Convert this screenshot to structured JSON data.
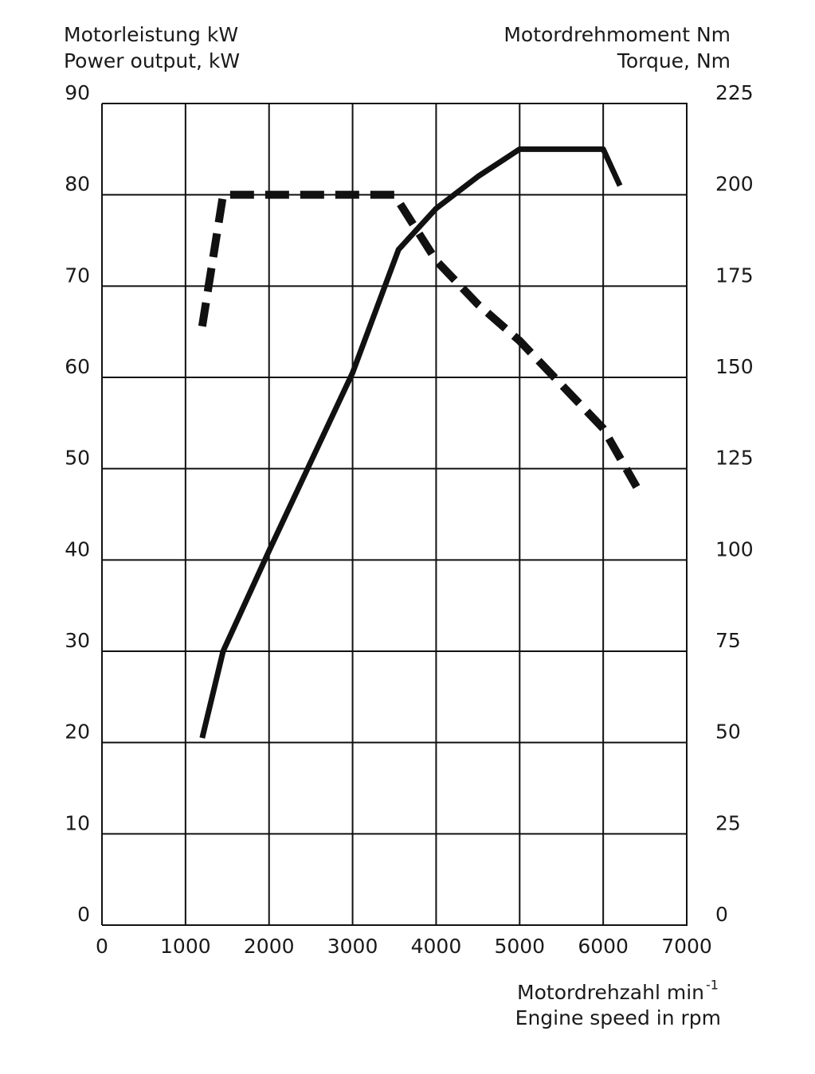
{
  "chart_data": {
    "type": "line",
    "y_label": [
      "Motorleistung kW",
      "Power output, kW"
    ],
    "y2_label": [
      "Motordrehmoment Nm",
      "Torque, Nm"
    ],
    "x_label": [
      "Motordrehzahl min",
      "Engine speed in rpm"
    ],
    "x_label_superscript": "-1",
    "xlim": [
      0,
      7000
    ],
    "xticks": [
      0,
      1000,
      2000,
      3000,
      4000,
      5000,
      6000,
      7000
    ],
    "ylim": [
      0,
      90
    ],
    "yticks": [
      0,
      10,
      20,
      30,
      40,
      50,
      60,
      70,
      80,
      90
    ],
    "y2lim": [
      0,
      225
    ],
    "y2ticks": [
      0,
      25,
      50,
      75,
      100,
      125,
      150,
      175,
      200,
      225
    ],
    "grid": true,
    "series": [
      {
        "color": "#111111",
        "line_style": "solid",
        "axis": "y",
        "x": [
          1200,
          1450,
          2000,
          3000,
          3550,
          4000,
          4500,
          5000,
          6000,
          6200
        ],
        "values": [
          20.5,
          30,
          41,
          60.5,
          74,
          78.5,
          82,
          85,
          85,
          81
        ]
      },
      {
        "color": "#111111",
        "line_style": "dashed",
        "axis": "y2",
        "x": [
          1200,
          1450,
          3500,
          4000,
          4500,
          5000,
          5500,
          6000,
          6400
        ],
        "values": [
          164,
          200,
          200,
          182,
          170,
          160,
          148,
          136,
          120
        ]
      }
    ]
  }
}
